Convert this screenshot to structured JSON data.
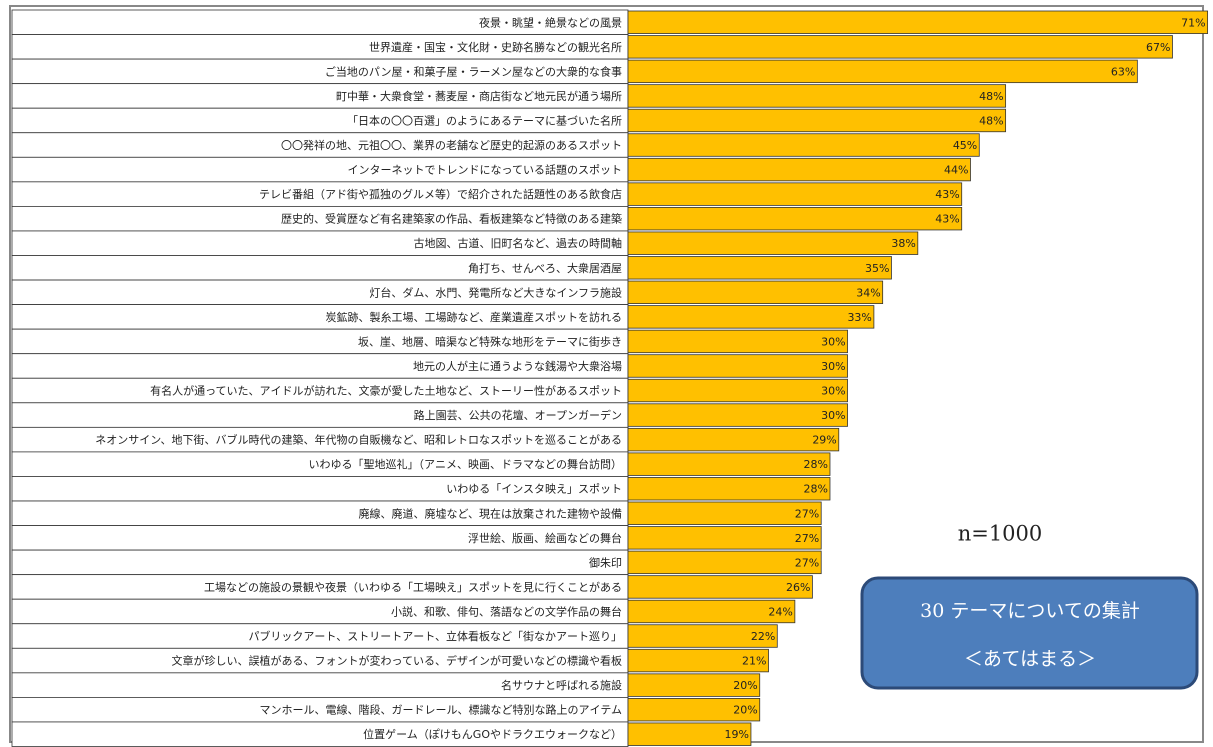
{
  "chart_data": {
    "type": "barh",
    "categories": [
      "夜景・眺望・絶景などの風景",
      "世界遺産・国宝・文化財・史跡名勝などの観光名所",
      "ご当地のパン屋・和菓子屋・ラーメン屋などの大衆的な食事",
      "町中華・大衆食堂・蕎麦屋・商店街など地元民が通う場所",
      "「日本の〇〇百選」のようにあるテーマに基づいた名所",
      "〇〇発祥の地、元祖〇〇、業界の老舗など歴史的起源のあるスポット",
      "インターネットでトレンドになっている話題のスポット",
      "テレビ番組（アド街や孤独のグルメ等）で紹介された話題性のある飲食店",
      "歴史的、受賞歴など有名建築家の作品、看板建築など特徴のある建築",
      "古地図、古道、旧町名など、過去の時間軸",
      "角打ち、せんべろ、大衆居酒屋",
      "灯台、ダム、水門、発電所など大きなインフラ施設",
      "炭鉱跡、製糸工場、工場跡など、産業遺産スポットを訪れる",
      "坂、崖、地層、暗渠など特殊な地形をテーマに街歩き",
      "地元の人が主に通うような銭湯や大衆浴場",
      "有名人が通っていた、アイドルが訪れた、文豪が愛した土地など、ストーリー性があるスポット",
      "路上園芸、公共の花壇、オープンガーデン",
      "ネオンサイン、地下街、バブル時代の建築、年代物の自販機など、昭和レトロなスポットを巡ることがある",
      "いわゆる「聖地巡礼」（アニメ、映画、ドラマなどの舞台訪問）",
      "いわゆる「インスタ映え」スポット",
      "廃線、廃道、廃墟など、現在は放棄された建物や設備",
      "浮世絵、版画、絵画などの舞台",
      "御朱印",
      "工場などの施設の景観や夜景（いわゆる「工場映え」スポットを見に行くことがある",
      "小説、和歌、俳句、落語などの文学作品の舞台",
      "パブリックアート、ストリートアート、立体看板など「街なかアート巡り」",
      "文章が珍しい、誤植がある、フォントが変わっている、デザインが可愛いなどの標識や看板",
      "名サウナと呼ばれる施設",
      "マンホール、電線、階段、ガードレール、標識など特別な路上のアイテム",
      "位置ゲーム（ぽけもんGOやドラクエウォークなど）"
    ],
    "values": [
      71,
      67,
      63,
      48,
      48,
      45,
      44,
      43,
      43,
      38,
      35,
      34,
      33,
      30,
      30,
      30,
      30,
      29,
      28,
      28,
      27,
      27,
      27,
      26,
      24,
      22,
      21,
      20,
      20,
      19
    ],
    "value_labels": [
      "71%",
      "67%",
      "63%",
      "48%",
      "48%",
      "45%",
      "44%",
      "43%",
      "43%",
      "38%",
      "35%",
      "34%",
      "33%",
      "30%",
      "30%",
      "30%",
      "30%",
      "29%",
      "28%",
      "28%",
      "27%",
      "27%",
      "27%",
      "26%",
      "24%",
      "22%",
      "21%",
      "20%",
      "20%",
      "19%"
    ],
    "color": "#ffc000",
    "xlim": [
      5,
      71.5
    ],
    "annotations": [
      "n=1000",
      "30 テーマについての集計",
      "＜あてはまる＞"
    ]
  }
}
